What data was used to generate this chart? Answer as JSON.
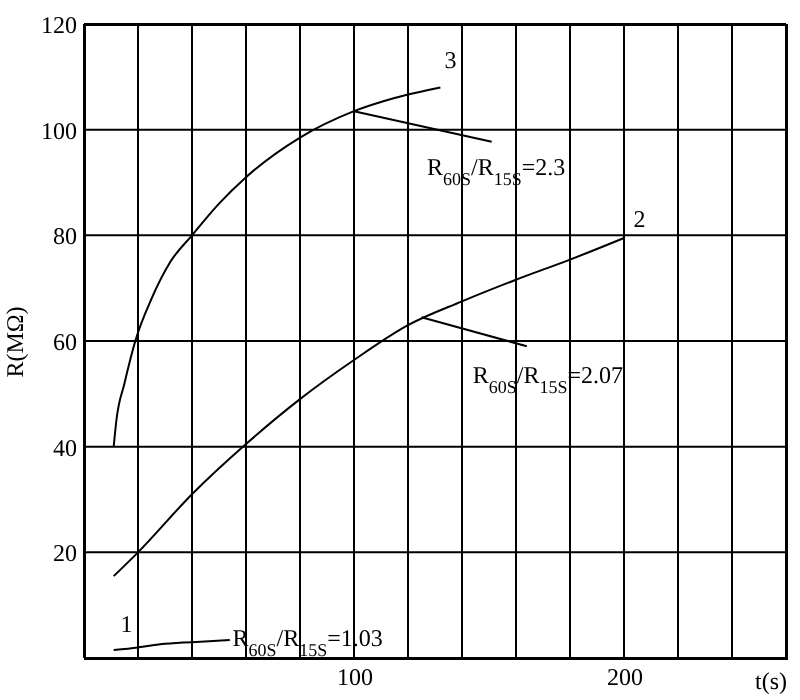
{
  "chart_data": {
    "type": "line",
    "xlabel": "t(s)",
    "ylabel": "R(MΩ)",
    "xlim": [
      0,
      260
    ],
    "ylim": [
      0,
      120
    ],
    "xticks": [
      {
        "value": 0,
        "label": null
      },
      {
        "value": 20,
        "label": null
      },
      {
        "value": 40,
        "label": null
      },
      {
        "value": 60,
        "label": null
      },
      {
        "value": 80,
        "label": null
      },
      100,
      {
        "value": 120,
        "label": null
      },
      {
        "value": 140,
        "label": null
      },
      {
        "value": 160,
        "label": null
      },
      {
        "value": 180,
        "label": null
      },
      200,
      {
        "value": 220,
        "label": null
      },
      {
        "value": 240,
        "label": null
      },
      {
        "value": 260,
        "label": null
      }
    ],
    "yticks": [
      {
        "value": 0,
        "label": null
      },
      20,
      40,
      60,
      80,
      100,
      120
    ],
    "grid": true,
    "marker": "none",
    "line_style": "solid",
    "series": [
      {
        "name": "1",
        "color": "#000000",
        "x": [
          11,
          20,
          30,
          40
        ],
        "values": [
          1.5,
          2.0,
          2.7,
          3.0
        ]
      },
      {
        "name": "2",
        "color": "#000000",
        "x": [
          11,
          20,
          40,
          60,
          80,
          100,
          120,
          140,
          160,
          180,
          200
        ],
        "values": [
          15.5,
          20,
          31,
          40.5,
          49,
          56.4,
          63,
          67.5,
          71.6,
          75.4,
          79.5
        ]
      },
      {
        "name": "3",
        "color": "#000000",
        "x": [
          11,
          12,
          15,
          19,
          25,
          32,
          40,
          50,
          60,
          80,
          100,
          115,
          132
        ],
        "values": [
          40,
          45,
          52,
          60,
          68,
          75,
          80,
          86,
          91,
          98.5,
          103.5,
          106,
          108
        ]
      }
    ],
    "annotations": [
      {
        "text": "R$_{60S}$/R$_{15S}$=1.03",
        "x": 40,
        "y": 3.0
      },
      {
        "text": "R$_{60S}$/R$_{15S}$=2.3",
        "x": 100,
        "y": 103.5
      },
      {
        "text": "R$_{60S}$/R$_{15S}$=2.07",
        "x": 125,
        "y": 64.5
      }
    ]
  }
}
